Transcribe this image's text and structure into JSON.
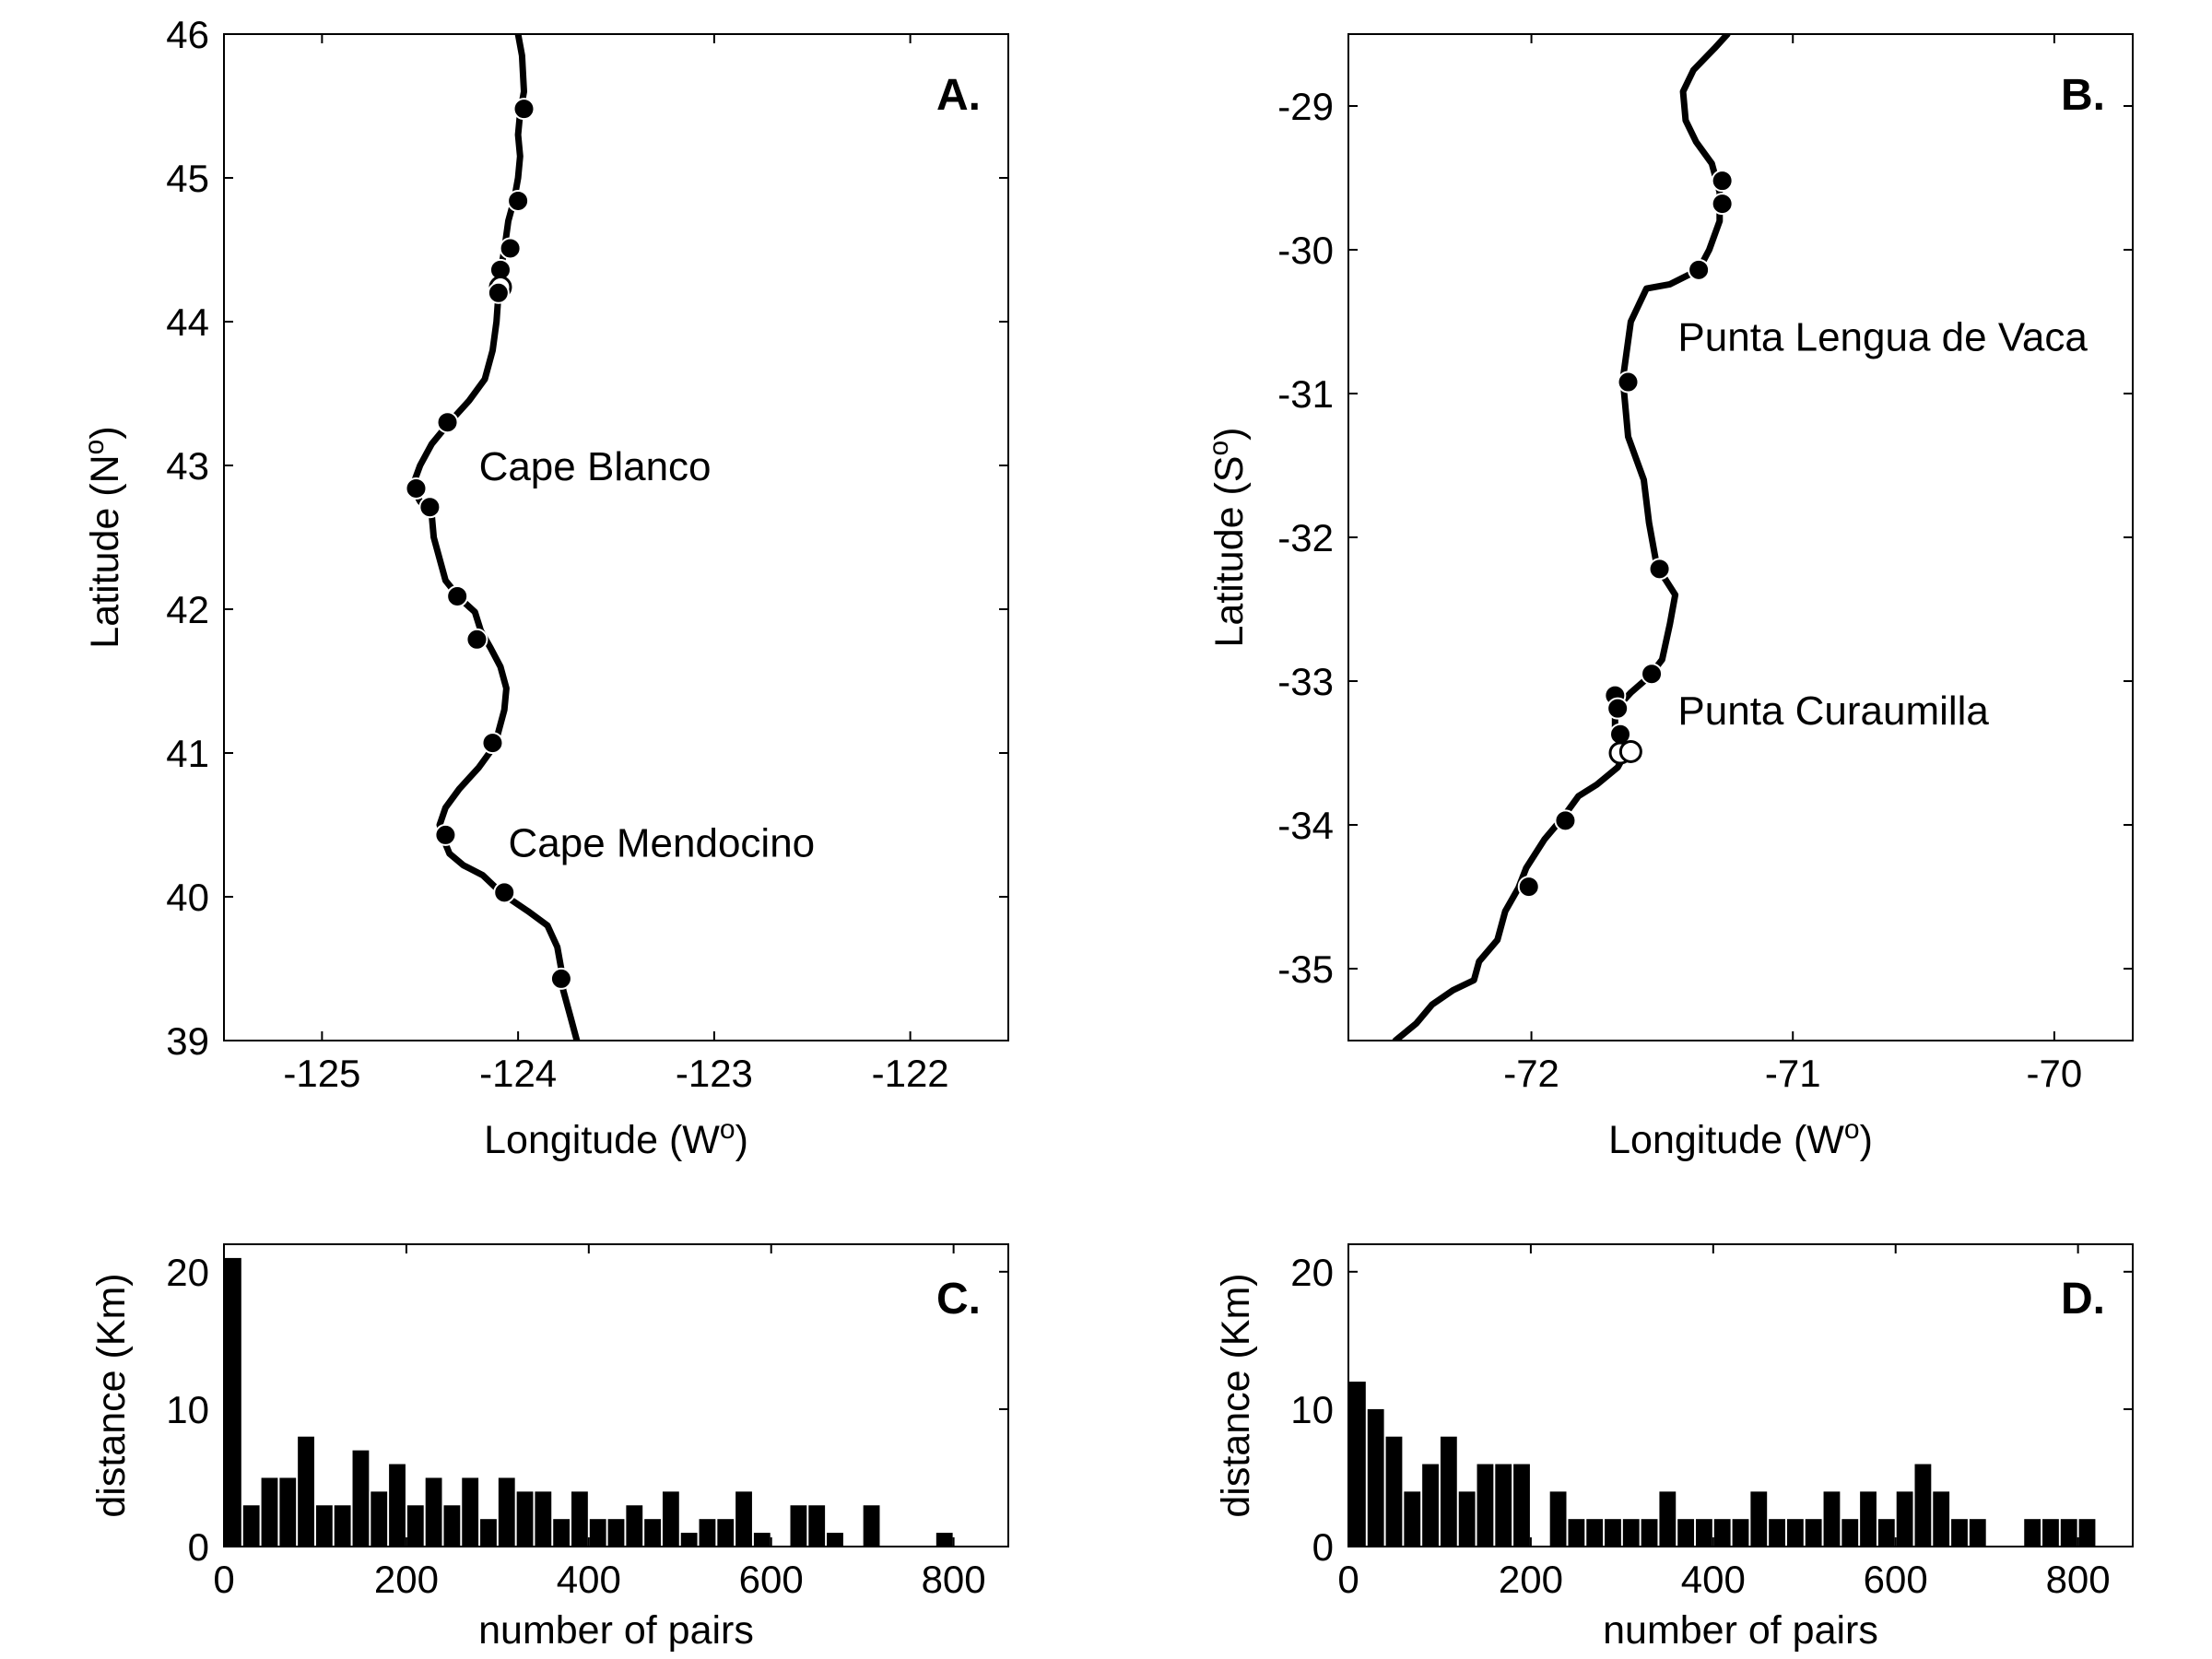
{
  "chart_data": [
    {
      "panel": "A.",
      "type": "scatter",
      "xlabel": "Longitude (W",
      "xlabel_sup": "o",
      "xlabel_close": ")",
      "ylabel": "Latitude (N",
      "ylabel_sup": "o",
      "ylabel_close": ")",
      "xlim": [
        -125.5,
        -121.5
      ],
      "ylim": [
        39,
        46
      ],
      "xticks": [
        -125,
        -124,
        -123,
        -122
      ],
      "yticks": [
        39,
        40,
        41,
        42,
        43,
        44,
        45,
        46
      ],
      "annotations": [
        {
          "text": "Cape Blanco",
          "x": -124.2,
          "y": 43.0
        },
        {
          "text": "Cape Mendocino",
          "x": -124.05,
          "y": 40.38
        }
      ],
      "coastline": [
        [
          -124.0,
          46.0
        ],
        [
          -123.98,
          45.85
        ],
        [
          -123.97,
          45.6
        ],
        [
          -123.99,
          45.45
        ],
        [
          -124.0,
          45.3
        ],
        [
          -123.99,
          45.15
        ],
        [
          -124.0,
          45.0
        ],
        [
          -124.02,
          44.85
        ],
        [
          -124.05,
          44.7
        ],
        [
          -124.07,
          44.5
        ],
        [
          -124.09,
          44.35
        ],
        [
          -124.1,
          44.2
        ],
        [
          -124.11,
          44.0
        ],
        [
          -124.13,
          43.8
        ],
        [
          -124.17,
          43.6
        ],
        [
          -124.25,
          43.45
        ],
        [
          -124.35,
          43.3
        ],
        [
          -124.44,
          43.15
        ],
        [
          -124.5,
          43.0
        ],
        [
          -124.54,
          42.85
        ],
        [
          -124.5,
          42.75
        ],
        [
          -124.44,
          42.65
        ],
        [
          -124.43,
          42.5
        ],
        [
          -124.4,
          42.35
        ],
        [
          -124.37,
          42.2
        ],
        [
          -124.3,
          42.08
        ],
        [
          -124.22,
          41.98
        ],
        [
          -124.19,
          41.85
        ],
        [
          -124.14,
          41.73
        ],
        [
          -124.09,
          41.6
        ],
        [
          -124.06,
          41.45
        ],
        [
          -124.07,
          41.3
        ],
        [
          -124.1,
          41.15
        ],
        [
          -124.12,
          41.05
        ],
        [
          -124.2,
          40.9
        ],
        [
          -124.3,
          40.75
        ],
        [
          -124.37,
          40.62
        ],
        [
          -124.4,
          40.5
        ],
        [
          -124.38,
          40.4
        ],
        [
          -124.35,
          40.3
        ],
        [
          -124.28,
          40.22
        ],
        [
          -124.18,
          40.15
        ],
        [
          -124.08,
          40.02
        ],
        [
          -123.95,
          39.9
        ],
        [
          -123.85,
          39.8
        ],
        [
          -123.8,
          39.65
        ],
        [
          -123.78,
          39.5
        ],
        [
          -123.77,
          39.35
        ],
        [
          -123.73,
          39.15
        ],
        [
          -123.7,
          39.0
        ]
      ],
      "points": [
        {
          "x": -123.97,
          "y": 45.48,
          "hollow": false
        },
        {
          "x": -124.0,
          "y": 44.84,
          "hollow": false
        },
        {
          "x": -124.04,
          "y": 44.51,
          "hollow": false
        },
        {
          "x": -124.09,
          "y": 44.36,
          "hollow": false
        },
        {
          "x": -124.09,
          "y": 44.24,
          "hollow": true
        },
        {
          "x": -124.1,
          "y": 44.2,
          "hollow": false
        },
        {
          "x": -124.36,
          "y": 43.3,
          "hollow": false
        },
        {
          "x": -124.52,
          "y": 42.84,
          "hollow": false
        },
        {
          "x": -124.45,
          "y": 42.71,
          "hollow": false
        },
        {
          "x": -124.31,
          "y": 42.09,
          "hollow": false
        },
        {
          "x": -124.21,
          "y": 41.79,
          "hollow": false
        },
        {
          "x": -124.13,
          "y": 41.07,
          "hollow": false
        },
        {
          "x": -124.37,
          "y": 40.43,
          "hollow": false
        },
        {
          "x": -124.07,
          "y": 40.03,
          "hollow": false
        },
        {
          "x": -123.78,
          "y": 39.43,
          "hollow": false
        }
      ]
    },
    {
      "panel": "B.",
      "type": "scatter",
      "xlabel": "Longitude (W",
      "xlabel_sup": "o",
      "xlabel_close": ")",
      "ylabel": "Latitude (S",
      "ylabel_sup": "o",
      "ylabel_close": ")",
      "xlim": [
        -72.7,
        -69.7
      ],
      "ylim": [
        -35.5,
        -28.5
      ],
      "xticks": [
        -72,
        -71,
        -70
      ],
      "yticks": [
        -29,
        -30,
        -31,
        -32,
        -33,
        -34,
        -35
      ],
      "annotations": [
        {
          "text": "Punta Lengua de Vaca",
          "x": -71.44,
          "y": -30.6
        },
        {
          "text": "Punta Curaumilla",
          "x": -71.44,
          "y": -33.2
        }
      ],
      "coastline": [
        [
          -71.25,
          -28.5
        ],
        [
          -71.3,
          -28.6
        ],
        [
          -71.38,
          -28.75
        ],
        [
          -71.42,
          -28.9
        ],
        [
          -71.41,
          -29.1
        ],
        [
          -71.37,
          -29.25
        ],
        [
          -71.31,
          -29.4
        ],
        [
          -71.28,
          -29.6
        ],
        [
          -71.28,
          -29.8
        ],
        [
          -71.32,
          -30.0
        ],
        [
          -71.36,
          -30.14
        ],
        [
          -71.47,
          -30.24
        ],
        [
          -71.56,
          -30.27
        ],
        [
          -71.62,
          -30.5
        ],
        [
          -71.65,
          -30.9
        ],
        [
          -71.63,
          -31.3
        ],
        [
          -71.57,
          -31.6
        ],
        [
          -71.55,
          -31.9
        ],
        [
          -71.52,
          -32.2
        ],
        [
          -71.45,
          -32.4
        ],
        [
          -71.47,
          -32.6
        ],
        [
          -71.5,
          -32.85
        ],
        [
          -71.55,
          -32.97
        ],
        [
          -71.62,
          -33.08
        ],
        [
          -71.68,
          -33.2
        ],
        [
          -71.68,
          -33.35
        ],
        [
          -71.64,
          -33.5
        ],
        [
          -71.67,
          -33.6
        ],
        [
          -71.75,
          -33.72
        ],
        [
          -71.82,
          -33.8
        ],
        [
          -71.88,
          -33.95
        ],
        [
          -71.95,
          -34.1
        ],
        [
          -72.02,
          -34.3
        ],
        [
          -72.05,
          -34.44
        ],
        [
          -72.1,
          -34.6
        ],
        [
          -72.13,
          -34.8
        ],
        [
          -72.2,
          -34.95
        ],
        [
          -72.22,
          -35.08
        ],
        [
          -72.3,
          -35.15
        ],
        [
          -72.38,
          -35.25
        ],
        [
          -72.44,
          -35.38
        ],
        [
          -72.52,
          -35.5
        ]
      ],
      "points": [
        {
          "x": -71.27,
          "y": -29.52,
          "hollow": false
        },
        {
          "x": -71.27,
          "y": -29.68,
          "hollow": false
        },
        {
          "x": -71.36,
          "y": -30.14,
          "hollow": false
        },
        {
          "x": -71.63,
          "y": -30.92,
          "hollow": false
        },
        {
          "x": -71.51,
          "y": -32.22,
          "hollow": false
        },
        {
          "x": -71.54,
          "y": -32.95,
          "hollow": false
        },
        {
          "x": -71.68,
          "y": -33.1,
          "hollow": false
        },
        {
          "x": -71.67,
          "y": -33.19,
          "hollow": false
        },
        {
          "x": -71.66,
          "y": -33.37,
          "hollow": false
        },
        {
          "x": -71.66,
          "y": -33.5,
          "hollow": true
        },
        {
          "x": -71.62,
          "y": -33.49,
          "hollow": true
        },
        {
          "x": -71.87,
          "y": -33.97,
          "hollow": false
        },
        {
          "x": -72.01,
          "y": -34.43,
          "hollow": false
        }
      ]
    },
    {
      "panel": "C.",
      "type": "bar",
      "xlabel": "number of pairs",
      "ylabel": "distance (Km)",
      "xlim": [
        0,
        860
      ],
      "ylim": [
        0,
        22
      ],
      "xticks": [
        0,
        200,
        400,
        600,
        800
      ],
      "yticks": [
        0,
        10,
        20
      ],
      "bin_width": 20,
      "bins": [
        0,
        20,
        40,
        60,
        80,
        100,
        120,
        140,
        160,
        180,
        200,
        220,
        240,
        260,
        280,
        300,
        320,
        340,
        360,
        380,
        400,
        420,
        440,
        460,
        480,
        500,
        520,
        540,
        560,
        580,
        600,
        620,
        640,
        660,
        680,
        700,
        720,
        740,
        760,
        780,
        800
      ],
      "values": [
        21,
        3,
        5,
        5,
        8,
        3,
        3,
        7,
        4,
        6,
        3,
        5,
        3,
        5,
        2,
        5,
        4,
        4,
        2,
        4,
        2,
        2,
        3,
        2,
        4,
        1,
        2,
        2,
        4,
        1,
        0,
        3,
        3,
        1,
        0,
        3,
        0,
        0,
        0,
        1,
        0
      ]
    },
    {
      "panel": "D.",
      "type": "bar",
      "xlabel": "number of pairs",
      "ylabel": "distance (Km)",
      "xlim": [
        0,
        860
      ],
      "ylim": [
        0,
        22
      ],
      "xticks": [
        0,
        200,
        400,
        600,
        800
      ],
      "yticks": [
        0,
        10,
        20
      ],
      "bin_width": 20,
      "bins": [
        0,
        20,
        40,
        60,
        80,
        100,
        120,
        140,
        160,
        180,
        200,
        220,
        240,
        260,
        280,
        300,
        320,
        340,
        360,
        380,
        400,
        420,
        440,
        460,
        480,
        500,
        520,
        540,
        560,
        580,
        600,
        620,
        640,
        660,
        680,
        700,
        720,
        740,
        760,
        780,
        800,
        820,
        840
      ],
      "values": [
        12,
        10,
        8,
        4,
        6,
        8,
        4,
        6,
        6,
        6,
        0,
        4,
        2,
        2,
        2,
        2,
        2,
        4,
        2,
        2,
        2,
        2,
        4,
        2,
        2,
        2,
        4,
        2,
        4,
        2,
        4,
        6,
        4,
        2,
        2,
        0,
        0,
        2,
        2,
        2,
        2,
        0,
        0
      ]
    }
  ]
}
